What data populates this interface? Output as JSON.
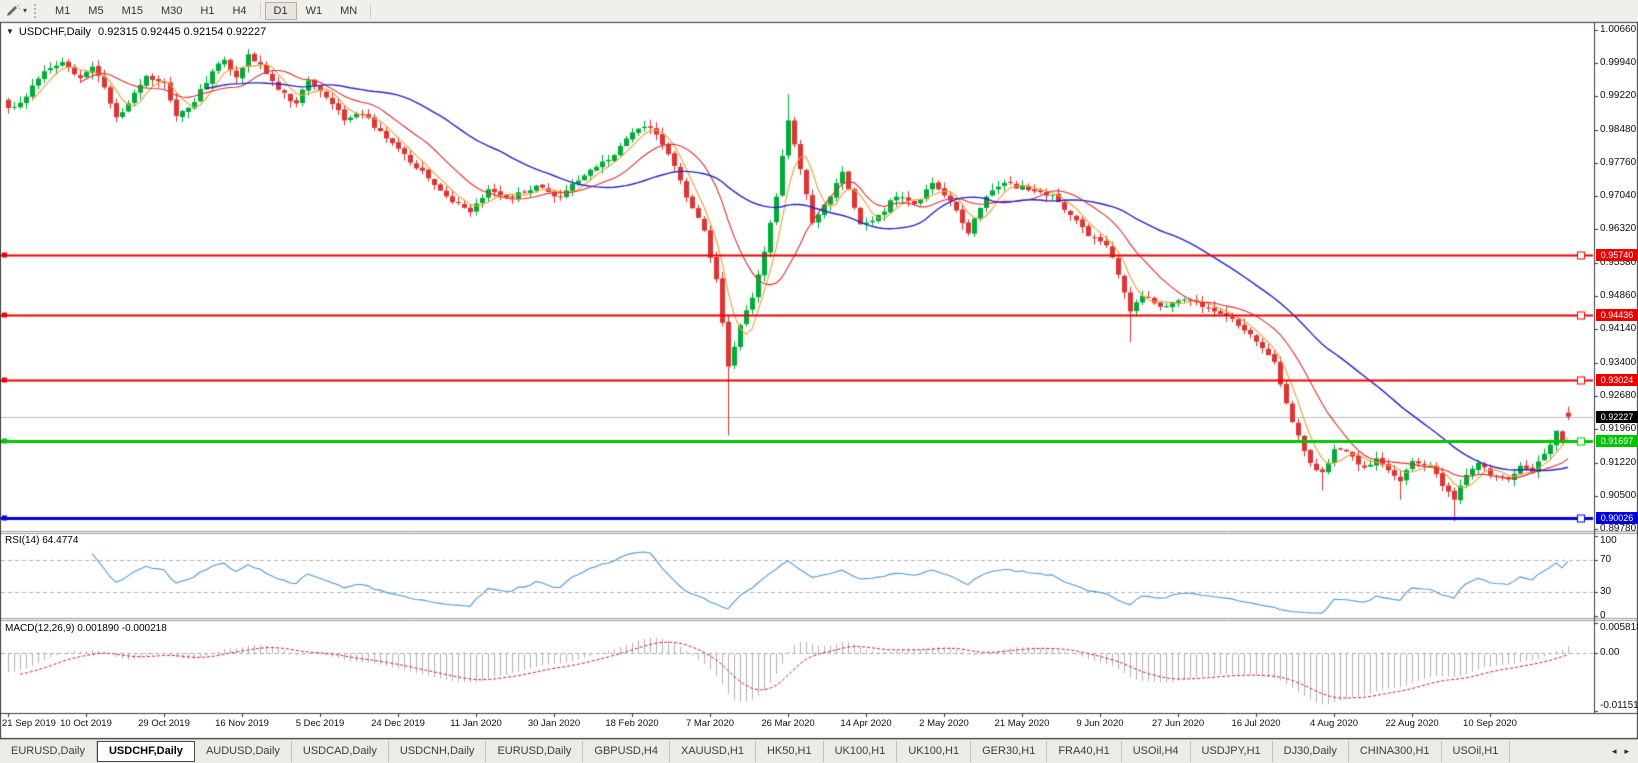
{
  "toolbar": {
    "tool_icon": "draw-cursor-icon",
    "dropdown_icon": "▾",
    "timeframes": [
      "M1",
      "M5",
      "M15",
      "M30",
      "H1",
      "H4",
      "D1",
      "W1",
      "MN"
    ],
    "active_timeframe": "D1"
  },
  "chart_header": {
    "collapse_icon": "▼",
    "symbol_period": "USDCHF,Daily",
    "ohlc_text": "0.92315 0.92445 0.92154 0.92227"
  },
  "price_axis_labels": [
    "1.00660",
    "0.99940",
    "0.99220",
    "0.98480",
    "0.97760",
    "0.97040",
    "0.96320",
    "0.95580",
    "0.94860",
    "0.94140",
    "0.93400",
    "0.92680",
    "0.91960",
    "0.91220",
    "0.90500",
    "0.89780"
  ],
  "indicators": {
    "rsi": {
      "label": "RSI(14) 64.4774",
      "axis_labels": [
        "100",
        "70",
        "30",
        "0"
      ]
    },
    "macd": {
      "label": "MACD(12,26,9) 0.001890 -0.000218",
      "axis_labels": [
        "0.005818",
        "0.00",
        "-0.011514"
      ]
    }
  },
  "date_axis": [
    "21 Sep 2019",
    "10 Oct 2019",
    "29 Oct 2019",
    "16 Nov 2019",
    "5 Dec 2019",
    "24 Dec 2019",
    "11 Jan 2020",
    "30 Jan 2020",
    "18 Feb 2020",
    "7 Mar 2020",
    "26 Mar 2020",
    "14 Apr 2020",
    "2 May 2020",
    "21 May 2020",
    "9 Jun 2020",
    "27 Jun 2020",
    "16 Jul 2020",
    "4 Aug 2020",
    "22 Aug 2020",
    "10 Sep 2020"
  ],
  "tab_bar": {
    "scroll_left_icon": "◂",
    "scroll_right_icon": "▸",
    "tabs": [
      {
        "label": "EURUSD,Daily",
        "active": false
      },
      {
        "label": "USDCHF,Daily",
        "active": true
      },
      {
        "label": "AUDUSD,Daily",
        "active": false
      },
      {
        "label": "USDCAD,Daily",
        "active": false
      },
      {
        "label": "USDCNH,Daily",
        "active": false
      },
      {
        "label": "EURUSD,Daily",
        "active": false
      },
      {
        "label": "GBPUSD,H4",
        "active": false
      },
      {
        "label": "XAUUSD,H1",
        "active": false
      },
      {
        "label": "HK50,H1",
        "active": false
      },
      {
        "label": "UK100,H1",
        "active": false
      },
      {
        "label": "UK100,H1",
        "active": false
      },
      {
        "label": "GER30,H1",
        "active": false
      },
      {
        "label": "FRA40,H1",
        "active": false
      },
      {
        "label": "USOil,H4",
        "active": false
      },
      {
        "label": "USDJPY,H1",
        "active": false
      },
      {
        "label": "DJ30,Daily",
        "active": false
      },
      {
        "label": "CHINA300,H1",
        "active": false
      },
      {
        "label": "USOil,H1",
        "active": false
      }
    ]
  },
  "chart_data": {
    "type": "candlestick",
    "symbol": "USDCHF",
    "period": "Daily",
    "last_candle": {
      "open": 0.92315,
      "high": 0.92445,
      "low": 0.92154,
      "close": 0.92227
    },
    "visible_price_range": [
      0.8976,
      1.0078
    ],
    "total_days": 261,
    "noise": 0.0012,
    "wick": 0.0015,
    "up_color": "#00ab38",
    "down_color": "#e03434",
    "price_anchors": [
      [
        0,
        0.9895
      ],
      [
        3,
        0.992
      ],
      [
        6,
        0.9975
      ],
      [
        9,
        0.9995
      ],
      [
        12,
        0.996
      ],
      [
        14,
        0.9985
      ],
      [
        16,
        0.994
      ],
      [
        18,
        0.9875
      ],
      [
        20,
        0.9905
      ],
      [
        23,
        0.9965
      ],
      [
        26,
        0.995
      ],
      [
        28,
        0.9878
      ],
      [
        31,
        0.9908
      ],
      [
        34,
        0.9975
      ],
      [
        36,
        1.0
      ],
      [
        38,
        0.9962
      ],
      [
        40,
        1.0012
      ],
      [
        42,
        0.999
      ],
      [
        45,
        0.9935
      ],
      [
        48,
        0.9905
      ],
      [
        50,
        0.9955
      ],
      [
        53,
        0.9918
      ],
      [
        56,
        0.9868
      ],
      [
        59,
        0.9882
      ],
      [
        62,
        0.9845
      ],
      [
        66,
        0.9795
      ],
      [
        70,
        0.9742
      ],
      [
        74,
        0.969
      ],
      [
        77,
        0.9668
      ],
      [
        80,
        0.9718
      ],
      [
        84,
        0.97
      ],
      [
        88,
        0.9726
      ],
      [
        92,
        0.9702
      ],
      [
        96,
        0.9748
      ],
      [
        100,
        0.9782
      ],
      [
        104,
        0.9842
      ],
      [
        107,
        0.9852
      ],
      [
        110,
        0.9795
      ],
      [
        113,
        0.97
      ],
      [
        116,
        0.9628
      ],
      [
        118,
        0.9522
      ],
      [
        120,
        0.9332
      ],
      [
        122,
        0.9422
      ],
      [
        124,
        0.9482
      ],
      [
        126,
        0.9582
      ],
      [
        128,
        0.9702
      ],
      [
        130,
        0.9868
      ],
      [
        132,
        0.9762
      ],
      [
        134,
        0.9645
      ],
      [
        137,
        0.9702
      ],
      [
        139,
        0.9756
      ],
      [
        142,
        0.9642
      ],
      [
        145,
        0.9662
      ],
      [
        148,
        0.9702
      ],
      [
        151,
        0.9686
      ],
      [
        154,
        0.9732
      ],
      [
        158,
        0.9672
      ],
      [
        160,
        0.9622
      ],
      [
        163,
        0.9702
      ],
      [
        166,
        0.9732
      ],
      [
        170,
        0.9716
      ],
      [
        174,
        0.9706
      ],
      [
        177,
        0.9662
      ],
      [
        180,
        0.9616
      ],
      [
        183,
        0.9596
      ],
      [
        185,
        0.9532
      ],
      [
        187,
        0.9452
      ],
      [
        189,
        0.9486
      ],
      [
        192,
        0.9462
      ],
      [
        195,
        0.9476
      ],
      [
        198,
        0.9472
      ],
      [
        201,
        0.9452
      ],
      [
        204,
        0.9436
      ],
      [
        207,
        0.9402
      ],
      [
        209,
        0.9372
      ],
      [
        211,
        0.9342
      ],
      [
        213,
        0.9252
      ],
      [
        215,
        0.9182
      ],
      [
        217,
        0.9122
      ],
      [
        219,
        0.9102
      ],
      [
        221,
        0.9152
      ],
      [
        224,
        0.9136
      ],
      [
        226,
        0.9112
      ],
      [
        228,
        0.9132
      ],
      [
        230,
        0.9106
      ],
      [
        232,
        0.9082
      ],
      [
        234,
        0.9126
      ],
      [
        237,
        0.9116
      ],
      [
        239,
        0.9072
      ],
      [
        241,
        0.9042
      ],
      [
        243,
        0.9096
      ],
      [
        245,
        0.9122
      ],
      [
        247,
        0.9096
      ],
      [
        250,
        0.9086
      ],
      [
        252,
        0.9116
      ],
      [
        254,
        0.9102
      ],
      [
        256,
        0.9142
      ],
      [
        258,
        0.9192
      ],
      [
        259,
        0.9172
      ],
      [
        260,
        0.92227
      ]
    ],
    "candle_overrides": [
      {
        "d": 40,
        "h": 1.0023
      },
      {
        "d": 120,
        "l": 0.9182
      },
      {
        "d": 130,
        "h": 0.9925
      },
      {
        "d": 187,
        "l": 0.9385
      },
      {
        "d": 219,
        "l": 0.9062
      },
      {
        "d": 232,
        "l": 0.9042
      },
      {
        "d": 241,
        "l": 0.8995
      },
      {
        "d": 260,
        "o": 0.92315,
        "h": 0.92445,
        "l": 0.92154,
        "c": 0.92227
      }
    ],
    "moving_averages": [
      {
        "period": 5,
        "color": "#f0a038"
      },
      {
        "period": 13,
        "color": "#e03030"
      },
      {
        "period": 34,
        "color": "#2626cc"
      }
    ],
    "horizontal_lines": [
      {
        "price": 0.9574,
        "label": "0.95740",
        "color": "#ee0000",
        "width": 2
      },
      {
        "price": 0.94436,
        "label": "0.94436",
        "color": "#ee0000",
        "width": 2
      },
      {
        "price": 0.93024,
        "label": "0.93024",
        "color": "#ee0000",
        "width": 2
      },
      {
        "price": 0.91697,
        "label": "0.91697",
        "color": "#00c400",
        "width": 3
      },
      {
        "price": 0.90026,
        "label": "0.90026",
        "color": "#0000dd",
        "width": 3
      }
    ],
    "current_price": {
      "value": 0.92227,
      "label": "0.92227",
      "line_color": "#bdbdbd",
      "tag_color": "#000000"
    },
    "rsi": {
      "period": 14,
      "current": 64.4774,
      "levels": [
        70,
        30
      ],
      "range": [
        0,
        100
      ],
      "color": "#4f9bd8"
    },
    "macd": {
      "fast": 12,
      "slow": 26,
      "signal_period": 9,
      "current": 0.00189,
      "signal_current": -0.000218,
      "range": [
        -0.011514,
        0.005818
      ],
      "histogram_color": "#b2b2b2",
      "signal_color": "#e02020"
    }
  }
}
